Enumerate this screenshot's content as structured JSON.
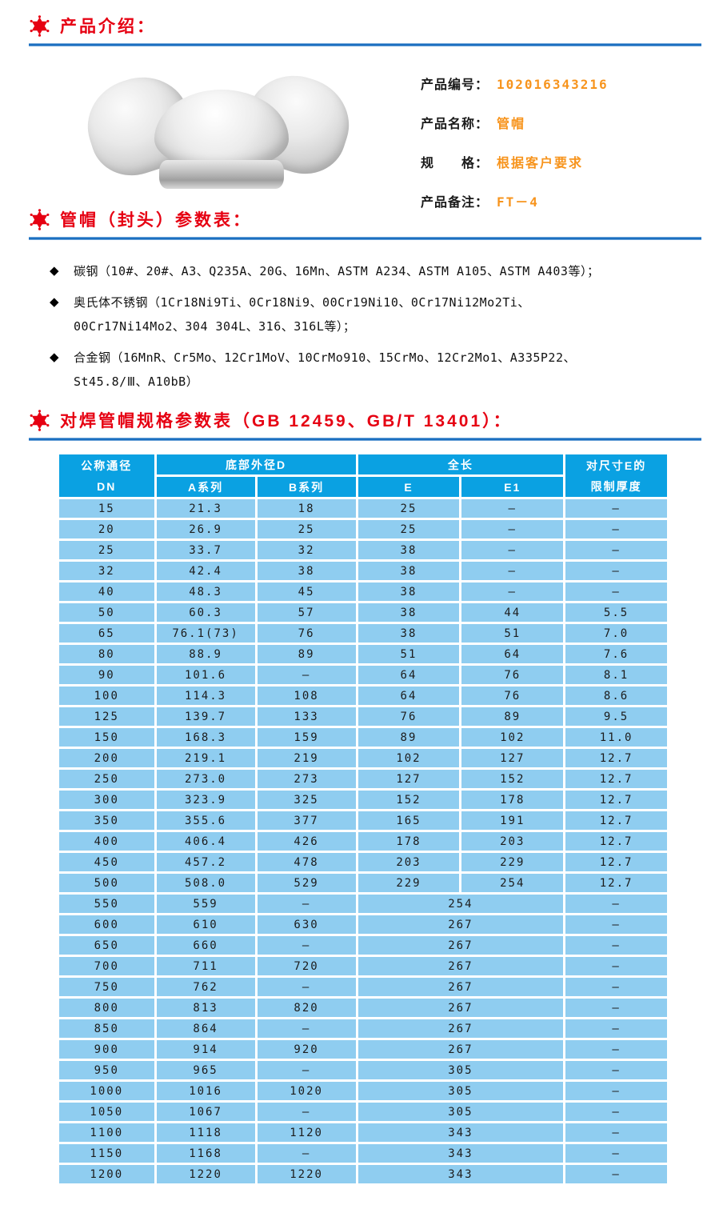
{
  "colors": {
    "accent_red": "#e60012",
    "accent_orange": "#f7941d",
    "rule_blue": "#1b6fc0",
    "table_header_blue": "#0aa1e2",
    "table_row_blue": "#8fcdf0"
  },
  "icons": {
    "section_star": "six-pointed-badge-star",
    "bullet_glyph": "◆"
  },
  "section_intro": {
    "title": "产品介绍："
  },
  "product": {
    "image": "three-steel-pipe-caps-photo",
    "fields": [
      {
        "label": "产品编号：",
        "value": "102016343216"
      },
      {
        "label": "产品名称：",
        "value": "管帽"
      },
      {
        "label": "规　　格：",
        "value": "根据客户要求"
      },
      {
        "label": "产品备注：",
        "value": "FT－4"
      }
    ]
  },
  "section_params": {
    "title": "管帽（封头）参数表："
  },
  "materials": [
    "碳钢（10#、20#、A3、Q235A、20G、16Mn、ASTM A234、ASTM A105、ASTM A403等）；",
    "奥氏体不锈钢（1Cr18Ni9Ti、0Cr18Ni9、00Cr19Ni10、0Cr17Ni12Mo2Ti、00Cr17Ni14Mo2、304 304L、316、316L等）；",
    "合金钢（16MnR、Cr5Mo、12Cr1MoV、10CrMo910、15CrMo、12Cr2Mo1、A335P22、St45.8/Ⅲ、A10bB）"
  ],
  "section_spec": {
    "title": "对焊管帽规格参数表（GB 12459、GB/T 13401）："
  },
  "table": {
    "header": {
      "col1_top": "公称通径",
      "col1_bottom": "DN",
      "group_d": "底部外径D",
      "group_len": "全长",
      "sub_a": "A系列",
      "sub_b": "B系列",
      "sub_e": "E",
      "sub_e1": "E1",
      "col6_top": "对尺寸E的",
      "col6_bottom": "限制厚度"
    },
    "rows": [
      {
        "dn": "15",
        "a": "21.3",
        "b": "18",
        "e": "25",
        "e1": "–",
        "t": "–",
        "merged": false
      },
      {
        "dn": "20",
        "a": "26.9",
        "b": "25",
        "e": "25",
        "e1": "–",
        "t": "–",
        "merged": false
      },
      {
        "dn": "25",
        "a": "33.7",
        "b": "32",
        "e": "38",
        "e1": "–",
        "t": "–",
        "merged": false
      },
      {
        "dn": "32",
        "a": "42.4",
        "b": "38",
        "e": "38",
        "e1": "–",
        "t": "–",
        "merged": false
      },
      {
        "dn": "40",
        "a": "48.3",
        "b": "45",
        "e": "38",
        "e1": "–",
        "t": "–",
        "merged": false
      },
      {
        "dn": "50",
        "a": "60.3",
        "b": "57",
        "e": "38",
        "e1": "44",
        "t": "5.5",
        "merged": false
      },
      {
        "dn": "65",
        "a": "76.1(73)",
        "b": "76",
        "e": "38",
        "e1": "51",
        "t": "7.0",
        "merged": false
      },
      {
        "dn": "80",
        "a": "88.9",
        "b": "89",
        "e": "51",
        "e1": "64",
        "t": "7.6",
        "merged": false
      },
      {
        "dn": "90",
        "a": "101.6",
        "b": "–",
        "e": "64",
        "e1": "76",
        "t": "8.1",
        "merged": false
      },
      {
        "dn": "100",
        "a": "114.3",
        "b": "108",
        "e": "64",
        "e1": "76",
        "t": "8.6",
        "merged": false
      },
      {
        "dn": "125",
        "a": "139.7",
        "b": "133",
        "e": "76",
        "e1": "89",
        "t": "9.5",
        "merged": false
      },
      {
        "dn": "150",
        "a": "168.3",
        "b": "159",
        "e": "89",
        "e1": "102",
        "t": "11.0",
        "merged": false
      },
      {
        "dn": "200",
        "a": "219.1",
        "b": "219",
        "e": "102",
        "e1": "127",
        "t": "12.7",
        "merged": false
      },
      {
        "dn": "250",
        "a": "273.0",
        "b": "273",
        "e": "127",
        "e1": "152",
        "t": "12.7",
        "merged": false
      },
      {
        "dn": "300",
        "a": "323.9",
        "b": "325",
        "e": "152",
        "e1": "178",
        "t": "12.7",
        "merged": false
      },
      {
        "dn": "350",
        "a": "355.6",
        "b": "377",
        "e": "165",
        "e1": "191",
        "t": "12.7",
        "merged": false
      },
      {
        "dn": "400",
        "a": "406.4",
        "b": "426",
        "e": "178",
        "e1": "203",
        "t": "12.7",
        "merged": false
      },
      {
        "dn": "450",
        "a": "457.2",
        "b": "478",
        "e": "203",
        "e1": "229",
        "t": "12.7",
        "merged": false
      },
      {
        "dn": "500",
        "a": "508.0",
        "b": "529",
        "e": "229",
        "e1": "254",
        "t": "12.7",
        "merged": false
      },
      {
        "dn": "550",
        "a": "559",
        "b": "–",
        "e": "254",
        "e1": null,
        "t": "–",
        "merged": true
      },
      {
        "dn": "600",
        "a": "610",
        "b": "630",
        "e": "267",
        "e1": null,
        "t": "–",
        "merged": true
      },
      {
        "dn": "650",
        "a": "660",
        "b": "–",
        "e": "267",
        "e1": null,
        "t": "–",
        "merged": true
      },
      {
        "dn": "700",
        "a": "711",
        "b": "720",
        "e": "267",
        "e1": null,
        "t": "–",
        "merged": true
      },
      {
        "dn": "750",
        "a": "762",
        "b": "–",
        "e": "267",
        "e1": null,
        "t": "–",
        "merged": true
      },
      {
        "dn": "800",
        "a": "813",
        "b": "820",
        "e": "267",
        "e1": null,
        "t": "–",
        "merged": true
      },
      {
        "dn": "850",
        "a": "864",
        "b": "–",
        "e": "267",
        "e1": null,
        "t": "–",
        "merged": true
      },
      {
        "dn": "900",
        "a": "914",
        "b": "920",
        "e": "267",
        "e1": null,
        "t": "–",
        "merged": true
      },
      {
        "dn": "950",
        "a": "965",
        "b": "–",
        "e": "305",
        "e1": null,
        "t": "–",
        "merged": true
      },
      {
        "dn": "1000",
        "a": "1016",
        "b": "1020",
        "e": "305",
        "e1": null,
        "t": "–",
        "merged": true
      },
      {
        "dn": "1050",
        "a": "1067",
        "b": "–",
        "e": "305",
        "e1": null,
        "t": "–",
        "merged": true
      },
      {
        "dn": "1100",
        "a": "1118",
        "b": "1120",
        "e": "343",
        "e1": null,
        "t": "–",
        "merged": true
      },
      {
        "dn": "1150",
        "a": "1168",
        "b": "–",
        "e": "343",
        "e1": null,
        "t": "–",
        "merged": true
      },
      {
        "dn": "1200",
        "a": "1220",
        "b": "1220",
        "e": "343",
        "e1": null,
        "t": "–",
        "merged": true
      }
    ]
  }
}
